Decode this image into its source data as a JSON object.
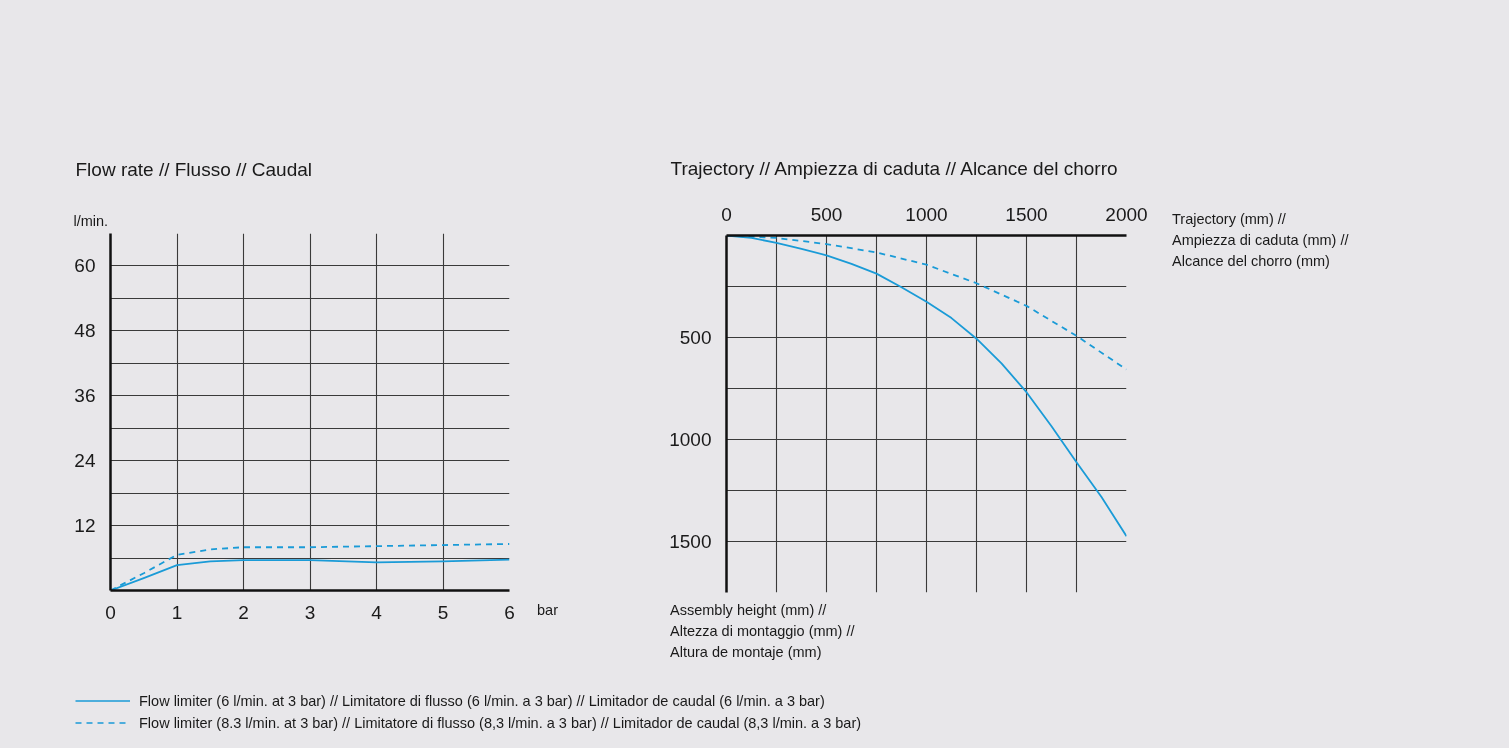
{
  "chart_data": [
    {
      "type": "line",
      "title": "Flow rate // Flusso // Caudal",
      "xlabel": "bar",
      "ylabel": "l/min.",
      "x": [
        0,
        0.5,
        1,
        1.5,
        2,
        3,
        4,
        5,
        6
      ],
      "series": [
        {
          "name": "Flow limiter (6 l/min. at 3 bar) // Limitatore di flusso (6 l/min. a 3 bar) // Limitador de caudal (6 l/min. a 3 bar)",
          "color": "#1a9bd7",
          "line_style": "solid",
          "values": [
            0,
            2.3,
            4.7,
            5.4,
            5.6,
            5.6,
            5.2,
            5.4,
            5.7
          ]
        },
        {
          "name": "Flow limiter (8.3 l/min. at 3 bar) // Limitatore di flusso (8,3 l/min. a 3 bar) // Limitador de caudal (8,3 l/min. a 3 bar)",
          "color": "#1a9bd7",
          "line_style": "dashed",
          "values": [
            0,
            3.2,
            6.6,
            7.6,
            8.0,
            8.0,
            8.2,
            8.4,
            8.6
          ]
        }
      ],
      "xlim": [
        0,
        6
      ],
      "ylim": [
        0,
        66
      ],
      "xticks": [
        0,
        1,
        2,
        3,
        4,
        5,
        6
      ],
      "yticks": [
        {
          "value": 0,
          "label": null
        },
        {
          "value": 6,
          "label": null
        },
        12,
        {
          "value": 18,
          "label": null
        },
        24,
        {
          "value": 30,
          "label": null
        },
        36,
        {
          "value": 42,
          "label": null
        },
        48,
        {
          "value": 54,
          "label": null
        },
        60
      ],
      "grid": true,
      "legend": "bottom"
    },
    {
      "type": "line",
      "title": "Trajectory // Ampiezza di caduta // Alcance del chorro",
      "xlabel": "Trajectory (mm) //\nAmpiezza di caduta (mm) //\nAlcance del chorro (mm)",
      "ylabel": "Assembly height (mm) //\nAltezza di montaggio (mm) //\nAltura de montaje (mm)",
      "series": [
        {
          "color": "#1a9bd7",
          "line_style": "solid",
          "x": [
            0,
            125,
            250,
            375,
            500,
            625,
            750,
            875,
            1000,
            1125,
            1250,
            1375,
            1500,
            1625,
            1750,
            1875,
            2000
          ],
          "values": [
            0,
            12,
            36,
            65,
            97,
            139,
            187,
            254,
            325,
            405,
            506,
            627,
            768,
            935,
            1111,
            1282,
            1474
          ]
        },
        {
          "color": "#1a9bd7",
          "line_style": "dashed",
          "x": [
            0,
            250,
            500,
            750,
            1000,
            1250,
            1500,
            1750,
            2000
          ],
          "values": [
            0,
            12,
            42,
            83,
            143,
            234,
            345,
            492,
            657
          ]
        }
      ],
      "xlim": [
        0,
        2000
      ],
      "ylim": [
        1750,
        0
      ],
      "xticks": [
        0,
        {
          "value": 250,
          "label": null
        },
        500,
        {
          "value": 750,
          "label": null
        },
        1000,
        {
          "value": 1250,
          "label": null
        },
        1500,
        {
          "value": 1750,
          "label": null
        },
        2000
      ],
      "yticks": [
        {
          "value": 0,
          "label": null
        },
        {
          "value": 250,
          "label": null
        },
        500,
        {
          "value": 750,
          "label": null
        },
        1000,
        {
          "value": 1250,
          "label": null
        },
        1500
      ],
      "grid": true
    }
  ]
}
